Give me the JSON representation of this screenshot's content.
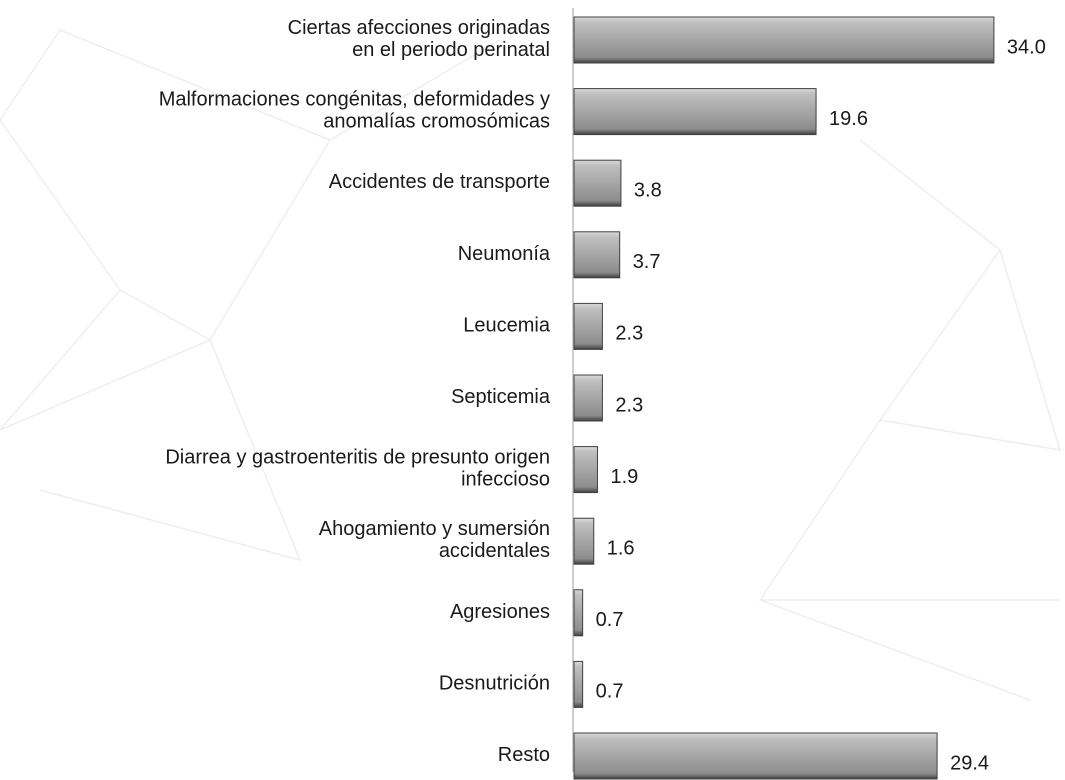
{
  "chart_data": {
    "type": "bar",
    "orientation": "horizontal",
    "categories": [
      "Ciertas afecciones originadas\nen el periodo perinatal",
      "Malformaciones congénitas, deformidades y\nanomalías cromosómicas",
      "Accidentes de transporte",
      "Neumonía",
      "Leucemia",
      "Septicemia",
      "Diarrea y gastroenteritis de presunto origen\ninfeccioso",
      "Ahogamiento y sumersión\naccidentales",
      "Agresiones",
      "Desnutrición",
      "Resto"
    ],
    "values": [
      34.0,
      19.6,
      3.8,
      3.7,
      2.3,
      2.3,
      1.9,
      1.6,
      0.7,
      0.7,
      29.4
    ],
    "value_labels": [
      "34.0",
      "19.6",
      "3.8",
      "3.7",
      "2.3",
      "2.3",
      "1.9",
      "1.6",
      "0.7",
      "0.7",
      "29.4"
    ],
    "color": "#a6a6a6"
  }
}
